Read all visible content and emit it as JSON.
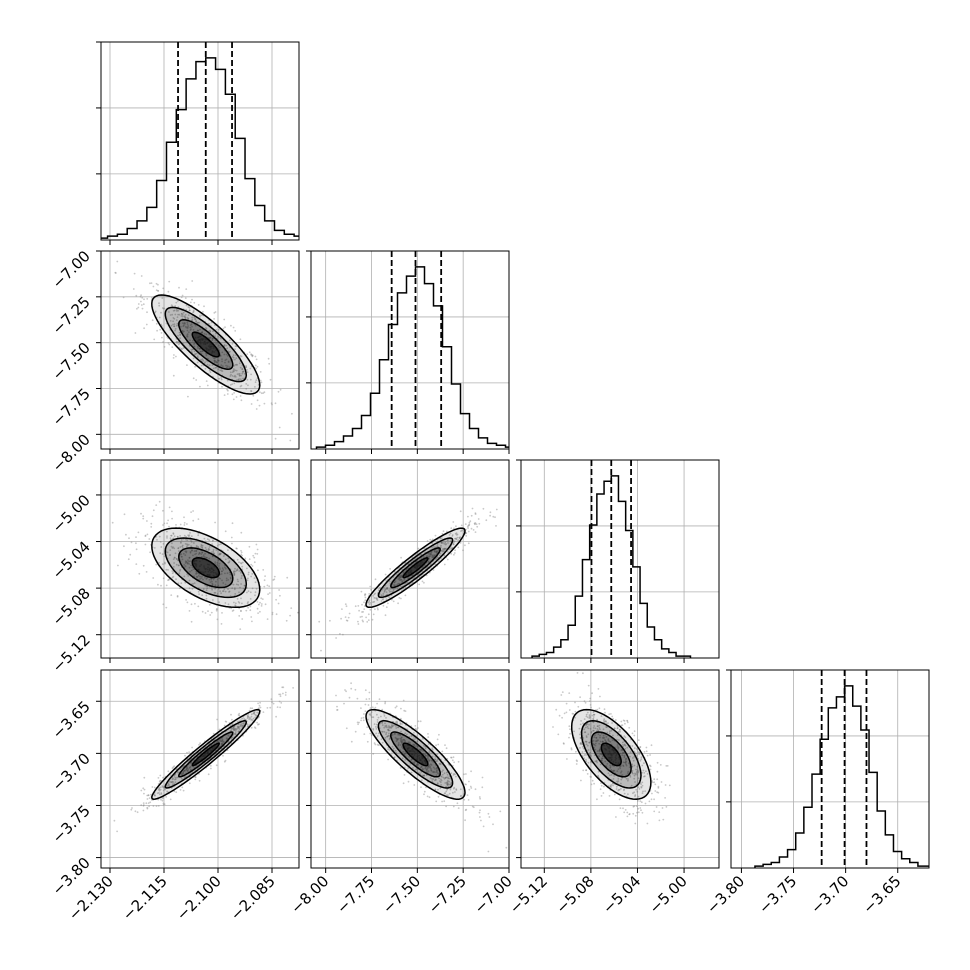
{
  "chart_data": {
    "type": "corner",
    "n_params": 4,
    "title": "",
    "parameters": [
      {
        "label": "",
        "range": [
          -2.1325,
          -2.0775
        ],
        "ticks": [
          -2.13,
          -2.115,
          -2.1,
          -2.085
        ],
        "tick_labels": [
          "−2.130",
          "−2.115",
          "−2.100",
          "−2.085"
        ],
        "quantiles": [
          -2.1111,
          -2.1034,
          -2.0961
        ]
      },
      {
        "label": "",
        "range": [
          -8.08,
          -7.0
        ],
        "ticks": [
          -8.0,
          -7.75,
          -7.5,
          -7.25,
          -7.0
        ],
        "tick_labels": [
          "−8.00",
          "−7.75",
          "−7.50",
          "−7.25",
          "−7.00"
        ],
        "quantiles": [
          -7.64,
          -7.51,
          -7.37
        ]
      },
      {
        "label": "",
        "range": [
          -5.14,
          -4.97
        ],
        "ticks": [
          -5.12,
          -5.08,
          -5.04,
          -5.0
        ],
        "tick_labels": [
          "−5.12",
          "−5.08",
          "−5.04",
          "−5.00"
        ],
        "quantiles": [
          -5.0795,
          -5.0625,
          -5.0455
        ]
      },
      {
        "label": "",
        "range": [
          -3.81,
          -3.62
        ],
        "ticks": [
          -3.8,
          -3.75,
          -3.7,
          -3.65
        ],
        "tick_labels": [
          "−3.80",
          "−3.75",
          "−3.70",
          "−3.65"
        ],
        "quantiles": [
          -3.723,
          -3.701,
          -3.68
        ]
      }
    ],
    "histograms": [
      [
        1,
        2,
        3,
        6,
        10,
        17,
        31,
        51,
        68,
        84,
        93,
        95,
        89,
        76,
        53,
        32,
        18,
        10,
        5,
        3,
        2,
        1
      ],
      [
        1,
        2,
        4,
        7,
        11,
        18,
        30,
        48,
        67,
        84,
        93,
        98,
        89,
        77,
        55,
        35,
        19,
        11,
        6,
        3,
        2,
        1
      ],
      [
        1,
        2,
        3,
        6,
        10,
        18,
        34,
        54,
        73,
        90,
        97,
        100,
        86,
        70,
        50,
        30,
        17,
        10,
        5,
        3,
        1,
        1
      ],
      [
        1,
        2,
        3,
        6,
        10,
        19,
        33,
        51,
        70,
        87,
        93,
        99,
        88,
        75,
        52,
        31,
        18,
        9,
        5,
        3,
        1,
        1
      ]
    ],
    "density_2d": {
      "1_0": {
        "corr": -0.82
      },
      "2_0": {
        "corr": -0.55
      },
      "2_1": {
        "corr": 0.93
      },
      "3_0": {
        "corr": 0.96
      },
      "3_1": {
        "corr": -0.85
      },
      "3_2": {
        "corr": -0.62
      }
    },
    "contour_levels_sigma": [
      0.5,
      1.0,
      1.5,
      2.0
    ],
    "grid": true,
    "colors": {
      "line": "#000000",
      "grid": "#b0b0b0",
      "points": "#888888",
      "density": "#000000"
    }
  }
}
